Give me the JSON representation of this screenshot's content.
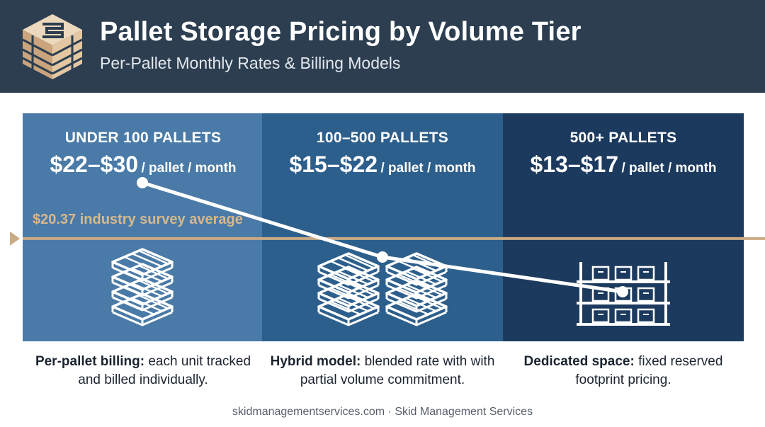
{
  "header": {
    "title": "Pallet Storage Pricing by Volume Tier",
    "subtitle": "Per-Pallet Monthly Rates & Billing Models"
  },
  "chart_data": {
    "type": "line",
    "title": "Pallet Storage Pricing by Volume Tier",
    "subtitle": "Per-Pallet Monthly Rates & Billing Models",
    "categories": [
      "UNDER 100 PALLETS",
      "100–500 PALLETS",
      "500+ PALLETS"
    ],
    "price_labels": [
      "$22–$30",
      "$15–$22",
      "$13–$17"
    ],
    "unit_label": "/ pallet / month",
    "values": [
      26,
      18.5,
      15
    ],
    "ylim": [
      10,
      33
    ],
    "reference_line": {
      "value": 20.37,
      "label": "$20.37 industry survey average"
    },
    "line_color": "#ffffff",
    "reference_color": "#c9ab85",
    "panel_colors": [
      "#4a7aa7",
      "#2d5f8c",
      "#1c3a5e"
    ],
    "grid": false,
    "legend": "none"
  },
  "captions": [
    {
      "bold": "Per-pallet billing:",
      "text": " each unit tracked and billed individually."
    },
    {
      "bold": "Hybrid model:",
      "text": " blended rate with with partial volume commitment."
    },
    {
      "bold": "Dedicated space:",
      "text": " fixed reserved footprint pricing."
    }
  ],
  "icons": [
    "pallet-stack-icon",
    "double-pallet-stack-icon",
    "warehouse-rack-icon"
  ],
  "footer": "skidmanagementservices.com · Skid Management Services",
  "colors": {
    "header_bg": "#2c3e50",
    "accent": "#c9ab85",
    "text_dark": "#1b2430"
  }
}
